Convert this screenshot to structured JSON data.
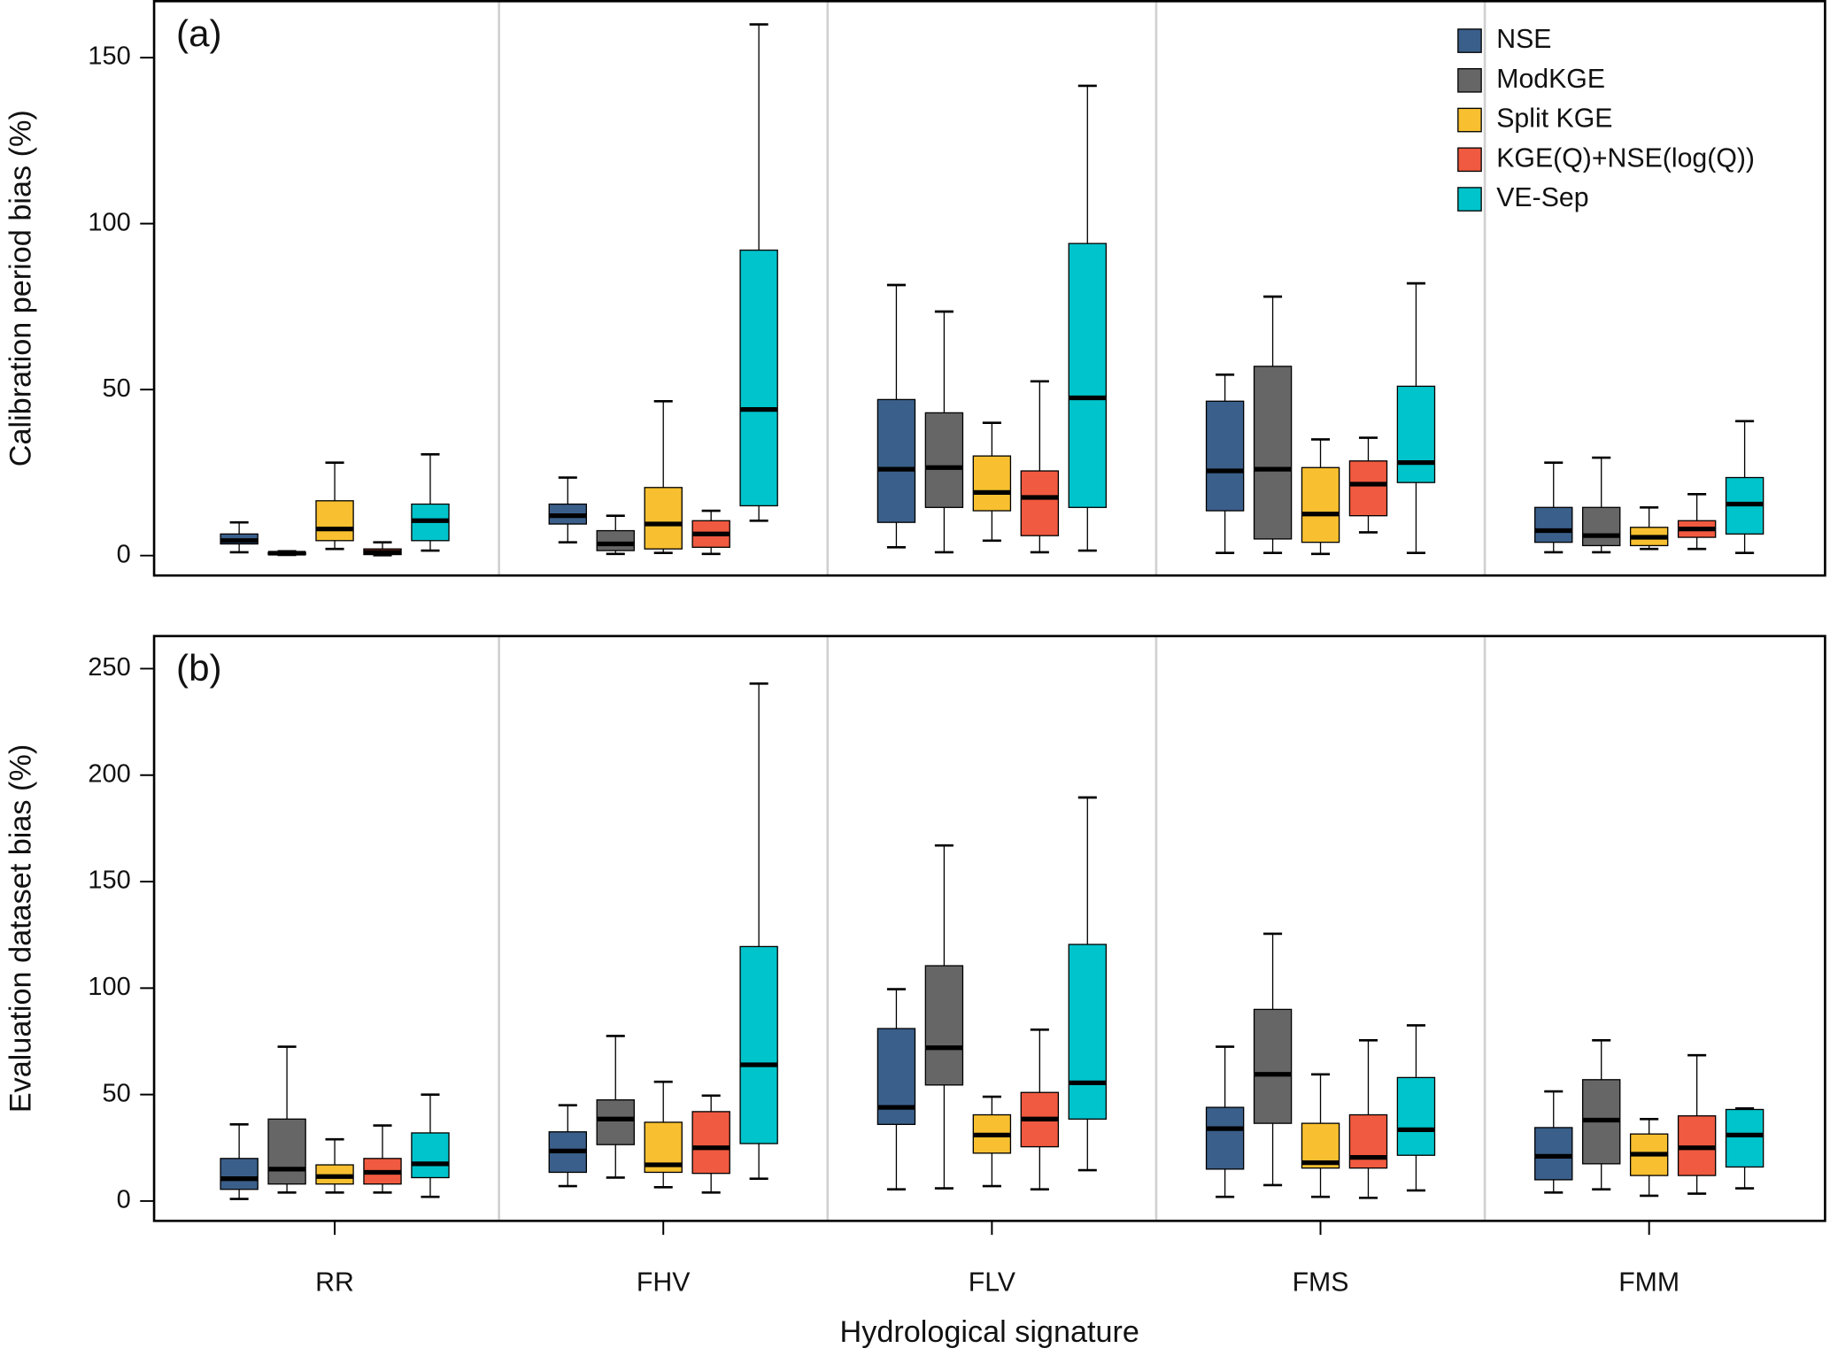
{
  "chart_data": [
    {
      "type": "box",
      "annotation": "(a)",
      "y_label": "Calibration period bias (%)",
      "ylim": [
        -6,
        167
      ],
      "yticks": [
        0,
        50,
        100,
        150
      ],
      "legend": "top-right",
      "series": [
        {
          "name": "NSE",
          "color": "#3a5f8a",
          "values": [
            {
              "min": 1,
              "q1": 3.5,
              "median": 4.5,
              "q3": 6.5,
              "max": 10
            },
            {
              "min": 4,
              "q1": 9.5,
              "median": 12,
              "q3": 15.5,
              "max": 23.5
            },
            {
              "min": 2.5,
              "q1": 10,
              "median": 26,
              "q3": 47,
              "max": 81.5
            },
            {
              "min": 0.8,
              "q1": 13.5,
              "median": 25.5,
              "q3": 46.5,
              "max": 54.5
            },
            {
              "min": 1,
              "q1": 4,
              "median": 7.5,
              "q3": 14.5,
              "max": 28
            }
          ]
        },
        {
          "name": "ModKGE",
          "color": "#666666",
          "values": [
            {
              "min": 0.2,
              "q1": 0.3,
              "median": 0.7,
              "q3": 1,
              "max": 1.3
            },
            {
              "min": 0.5,
              "q1": 1.5,
              "median": 3.5,
              "q3": 7.5,
              "max": 12
            },
            {
              "min": 1,
              "q1": 14.5,
              "median": 26.5,
              "q3": 43,
              "max": 73.5
            },
            {
              "min": 0.8,
              "q1": 5,
              "median": 26,
              "q3": 57,
              "max": 78
            },
            {
              "min": 1,
              "q1": 3,
              "median": 6,
              "q3": 14.5,
              "max": 29.5
            }
          ]
        },
        {
          "name": "Split KGE",
          "color": "#f8c030",
          "values": [
            {
              "min": 2,
              "q1": 4.5,
              "median": 8,
              "q3": 16.5,
              "max": 28
            },
            {
              "min": 0.8,
              "q1": 2,
              "median": 9.5,
              "q3": 20.5,
              "max": 46.5
            },
            {
              "min": 4.5,
              "q1": 13.5,
              "median": 19,
              "q3": 30,
              "max": 40
            },
            {
              "min": 0.5,
              "q1": 4,
              "median": 12.5,
              "q3": 26.5,
              "max": 35
            },
            {
              "min": 2,
              "q1": 3,
              "median": 5.5,
              "q3": 8.5,
              "max": 14.5
            }
          ]
        },
        {
          "name": "KGE(Q)+NSE(log(Q))",
          "color": "#f05a40",
          "values": [
            {
              "min": 0.1,
              "q1": 0.3,
              "median": 1,
              "q3": 2,
              "max": 4
            },
            {
              "min": 0.5,
              "q1": 2.5,
              "median": 6.5,
              "q3": 10.5,
              "max": 13.5
            },
            {
              "min": 1,
              "q1": 6,
              "median": 17.5,
              "q3": 25.5,
              "max": 52.5
            },
            {
              "min": 7,
              "q1": 12,
              "median": 21.5,
              "q3": 28.5,
              "max": 35.5
            },
            {
              "min": 2,
              "q1": 5.5,
              "median": 8,
              "q3": 10.5,
              "max": 18.5
            }
          ]
        },
        {
          "name": "VE-Sep",
          "color": "#00c4cc",
          "values": [
            {
              "min": 1.5,
              "q1": 4.5,
              "median": 10.5,
              "q3": 15.5,
              "max": 30.5
            },
            {
              "min": 10.5,
              "q1": 15,
              "median": 44,
              "q3": 92,
              "max": 160
            },
            {
              "min": 1.5,
              "q1": 14.5,
              "median": 47.5,
              "q3": 94,
              "max": 141.5
            },
            {
              "min": 0.8,
              "q1": 22,
              "median": 28,
              "q3": 51,
              "max": 82
            },
            {
              "min": 0.8,
              "q1": 6.5,
              "median": 15.5,
              "q3": 23.5,
              "max": 40.5
            }
          ]
        }
      ]
    },
    {
      "type": "box",
      "annotation": "(b)",
      "y_label": "Evaluation dataset bias (%)",
      "x_label": "Hydrological signature",
      "categories": [
        "RR",
        "FHV",
        "FLV",
        "FMS",
        "FMM"
      ],
      "ylim": [
        -9.3,
        265.3
      ],
      "yticks": [
        0,
        50,
        100,
        150,
        200,
        250
      ],
      "series": [
        {
          "color": "#3a5f8a",
          "values": [
            {
              "min": 1,
              "q1": 5.5,
              "median": 10.5,
              "q3": 20,
              "max": 36
            },
            {
              "min": 7,
              "q1": 13.5,
              "median": 23.5,
              "q3": 32.5,
              "max": 45
            },
            {
              "min": 5.5,
              "q1": 36,
              "median": 44,
              "q3": 81,
              "max": 99.5
            },
            {
              "min": 2,
              "q1": 15,
              "median": 34,
              "q3": 44,
              "max": 72.5
            },
            {
              "min": 4,
              "q1": 10,
              "median": 21,
              "q3": 34.5,
              "max": 51.5
            }
          ]
        },
        {
          "color": "#666666",
          "values": [
            {
              "min": 4,
              "q1": 8,
              "median": 15,
              "q3": 38.5,
              "max": 72.5
            },
            {
              "min": 11,
              "q1": 26.5,
              "median": 38.5,
              "q3": 47.5,
              "max": 77.5
            },
            {
              "min": 6,
              "q1": 54.5,
              "median": 72,
              "q3": 110.5,
              "max": 167
            },
            {
              "min": 7.5,
              "q1": 36.5,
              "median": 59.5,
              "q3": 90,
              "max": 125.5
            },
            {
              "min": 5.5,
              "q1": 17.5,
              "median": 38,
              "q3": 57,
              "max": 75.5
            }
          ]
        },
        {
          "color": "#f8c030",
          "values": [
            {
              "min": 4,
              "q1": 8,
              "median": 11.5,
              "q3": 17,
              "max": 29
            },
            {
              "min": 6.5,
              "q1": 13.5,
              "median": 17,
              "q3": 37,
              "max": 56
            },
            {
              "min": 7,
              "q1": 22.5,
              "median": 31,
              "q3": 40.5,
              "max": 49
            },
            {
              "min": 2,
              "q1": 15.5,
              "median": 18,
              "q3": 36.5,
              "max": 59.5
            },
            {
              "min": 2.5,
              "q1": 12,
              "median": 22,
              "q3": 31.5,
              "max": 38.5
            }
          ]
        },
        {
          "color": "#f05a40",
          "values": [
            {
              "min": 4,
              "q1": 8,
              "median": 13.5,
              "q3": 20,
              "max": 35.5
            },
            {
              "min": 4,
              "q1": 13,
              "median": 25,
              "q3": 42,
              "max": 49.5
            },
            {
              "min": 5.5,
              "q1": 25.5,
              "median": 38.5,
              "q3": 51,
              "max": 80.5
            },
            {
              "min": 1.5,
              "q1": 15.5,
              "median": 20.5,
              "q3": 40.5,
              "max": 75.5
            },
            {
              "min": 3.5,
              "q1": 12,
              "median": 25,
              "q3": 40,
              "max": 68.5
            }
          ]
        },
        {
          "color": "#00c4cc",
          "values": [
            {
              "min": 2,
              "q1": 11,
              "median": 17.5,
              "q3": 32,
              "max": 50
            },
            {
              "min": 10.5,
              "q1": 27,
              "median": 64,
              "q3": 119.5,
              "max": 243
            },
            {
              "min": 14.5,
              "q1": 38.5,
              "median": 55.5,
              "q3": 120.5,
              "max": 189.5
            },
            {
              "min": 5,
              "q1": 21.5,
              "median": 33.5,
              "q3": 58,
              "max": 82.5
            },
            {
              "min": 6,
              "q1": 16,
              "median": 31,
              "q3": 43,
              "max": 43.5
            }
          ]
        }
      ]
    }
  ]
}
